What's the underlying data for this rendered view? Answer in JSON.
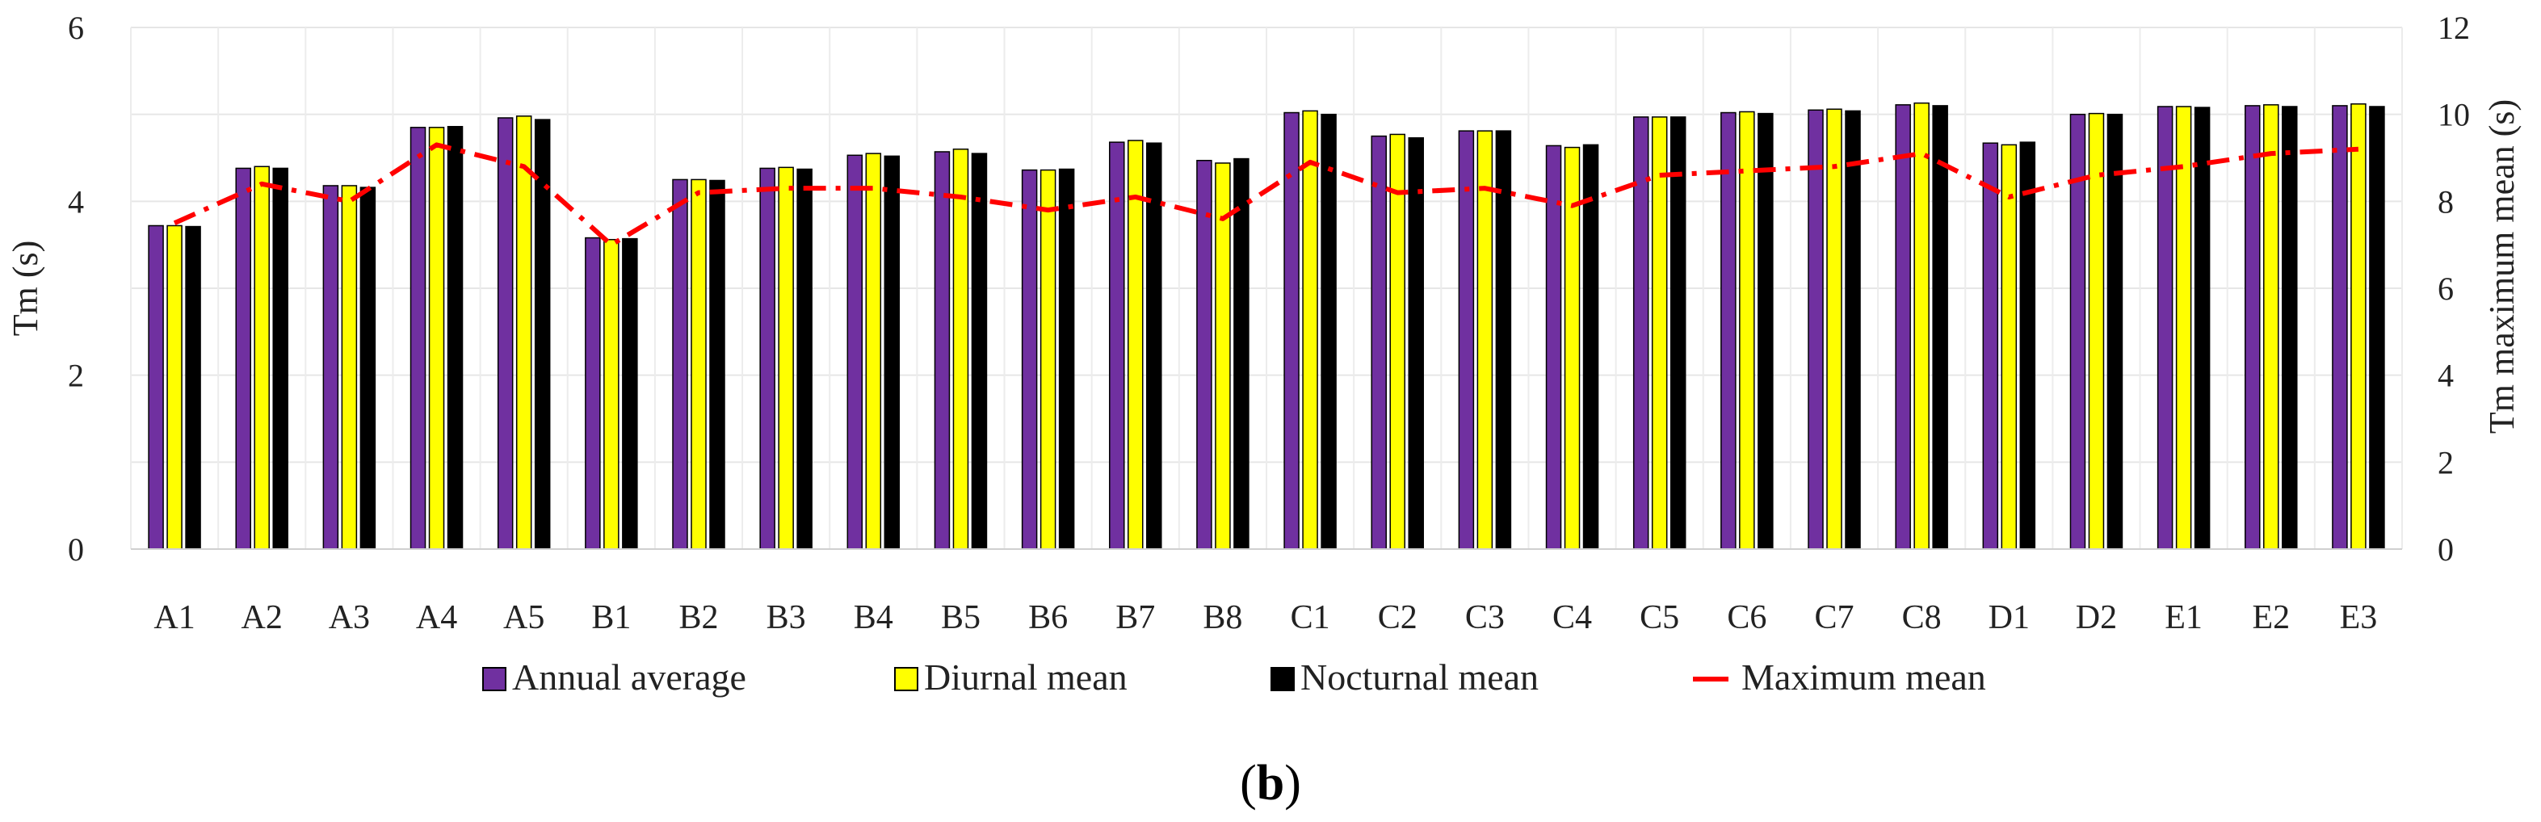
{
  "chart_data": {
    "type": "bar",
    "panel_label": "(b)",
    "categories": [
      "A1",
      "A2",
      "A3",
      "A4",
      "A5",
      "B1",
      "B2",
      "B3",
      "B4",
      "B5",
      "B6",
      "B7",
      "B8",
      "C1",
      "C2",
      "C3",
      "C4",
      "C5",
      "C6",
      "C7",
      "C8",
      "D1",
      "D2",
      "E1",
      "E2",
      "E3"
    ],
    "ylabel": "Tm (s)",
    "y2label": "Tm maximum mean (s)",
    "ylim": [
      0,
      6
    ],
    "y2lim": [
      0,
      12
    ],
    "yticks": [
      "0",
      "2",
      "4",
      "6"
    ],
    "y2ticks": [
      "0",
      "2",
      "4",
      "6",
      "8",
      "10",
      "12"
    ],
    "grid": true,
    "legend_position": "bottom",
    "series": [
      {
        "name": "Annual average",
        "kind": "bar",
        "axis": "left",
        "color": "#7030A0",
        "values": [
          3.72,
          4.38,
          4.18,
          4.85,
          4.96,
          3.58,
          4.25,
          4.38,
          4.53,
          4.57,
          4.36,
          4.68,
          4.47,
          5.02,
          4.75,
          4.81,
          4.64,
          4.97,
          5.02,
          5.05,
          5.11,
          4.67,
          5.0,
          5.09,
          5.1,
          5.1
        ]
      },
      {
        "name": "Diurnal mean",
        "kind": "bar",
        "axis": "left",
        "color": "#FFFF00",
        "values": [
          3.72,
          4.4,
          4.18,
          4.85,
          4.98,
          3.56,
          4.25,
          4.39,
          4.55,
          4.6,
          4.36,
          4.7,
          4.44,
          5.04,
          4.77,
          4.81,
          4.62,
          4.97,
          5.03,
          5.06,
          5.13,
          4.65,
          5.01,
          5.09,
          5.11,
          5.12
        ]
      },
      {
        "name": "Nocturnal mean",
        "kind": "bar",
        "axis": "left",
        "color": "#000000",
        "values": [
          3.71,
          4.38,
          4.16,
          4.86,
          4.94,
          3.57,
          4.24,
          4.37,
          4.52,
          4.55,
          4.37,
          4.67,
          4.49,
          5.0,
          4.73,
          4.81,
          4.65,
          4.97,
          5.01,
          5.04,
          5.1,
          4.68,
          5.0,
          5.08,
          5.09,
          5.09
        ]
      },
      {
        "name": "Maximum mean",
        "kind": "line",
        "axis": "right",
        "color": "#FF0000",
        "values": [
          7.5,
          8.4,
          8.0,
          9.3,
          8.8,
          7.0,
          8.2,
          8.3,
          8.3,
          8.1,
          7.8,
          8.1,
          7.6,
          8.9,
          8.2,
          8.3,
          7.9,
          8.6,
          8.7,
          8.8,
          9.1,
          8.1,
          8.6,
          8.8,
          9.1,
          9.2
        ]
      }
    ]
  }
}
